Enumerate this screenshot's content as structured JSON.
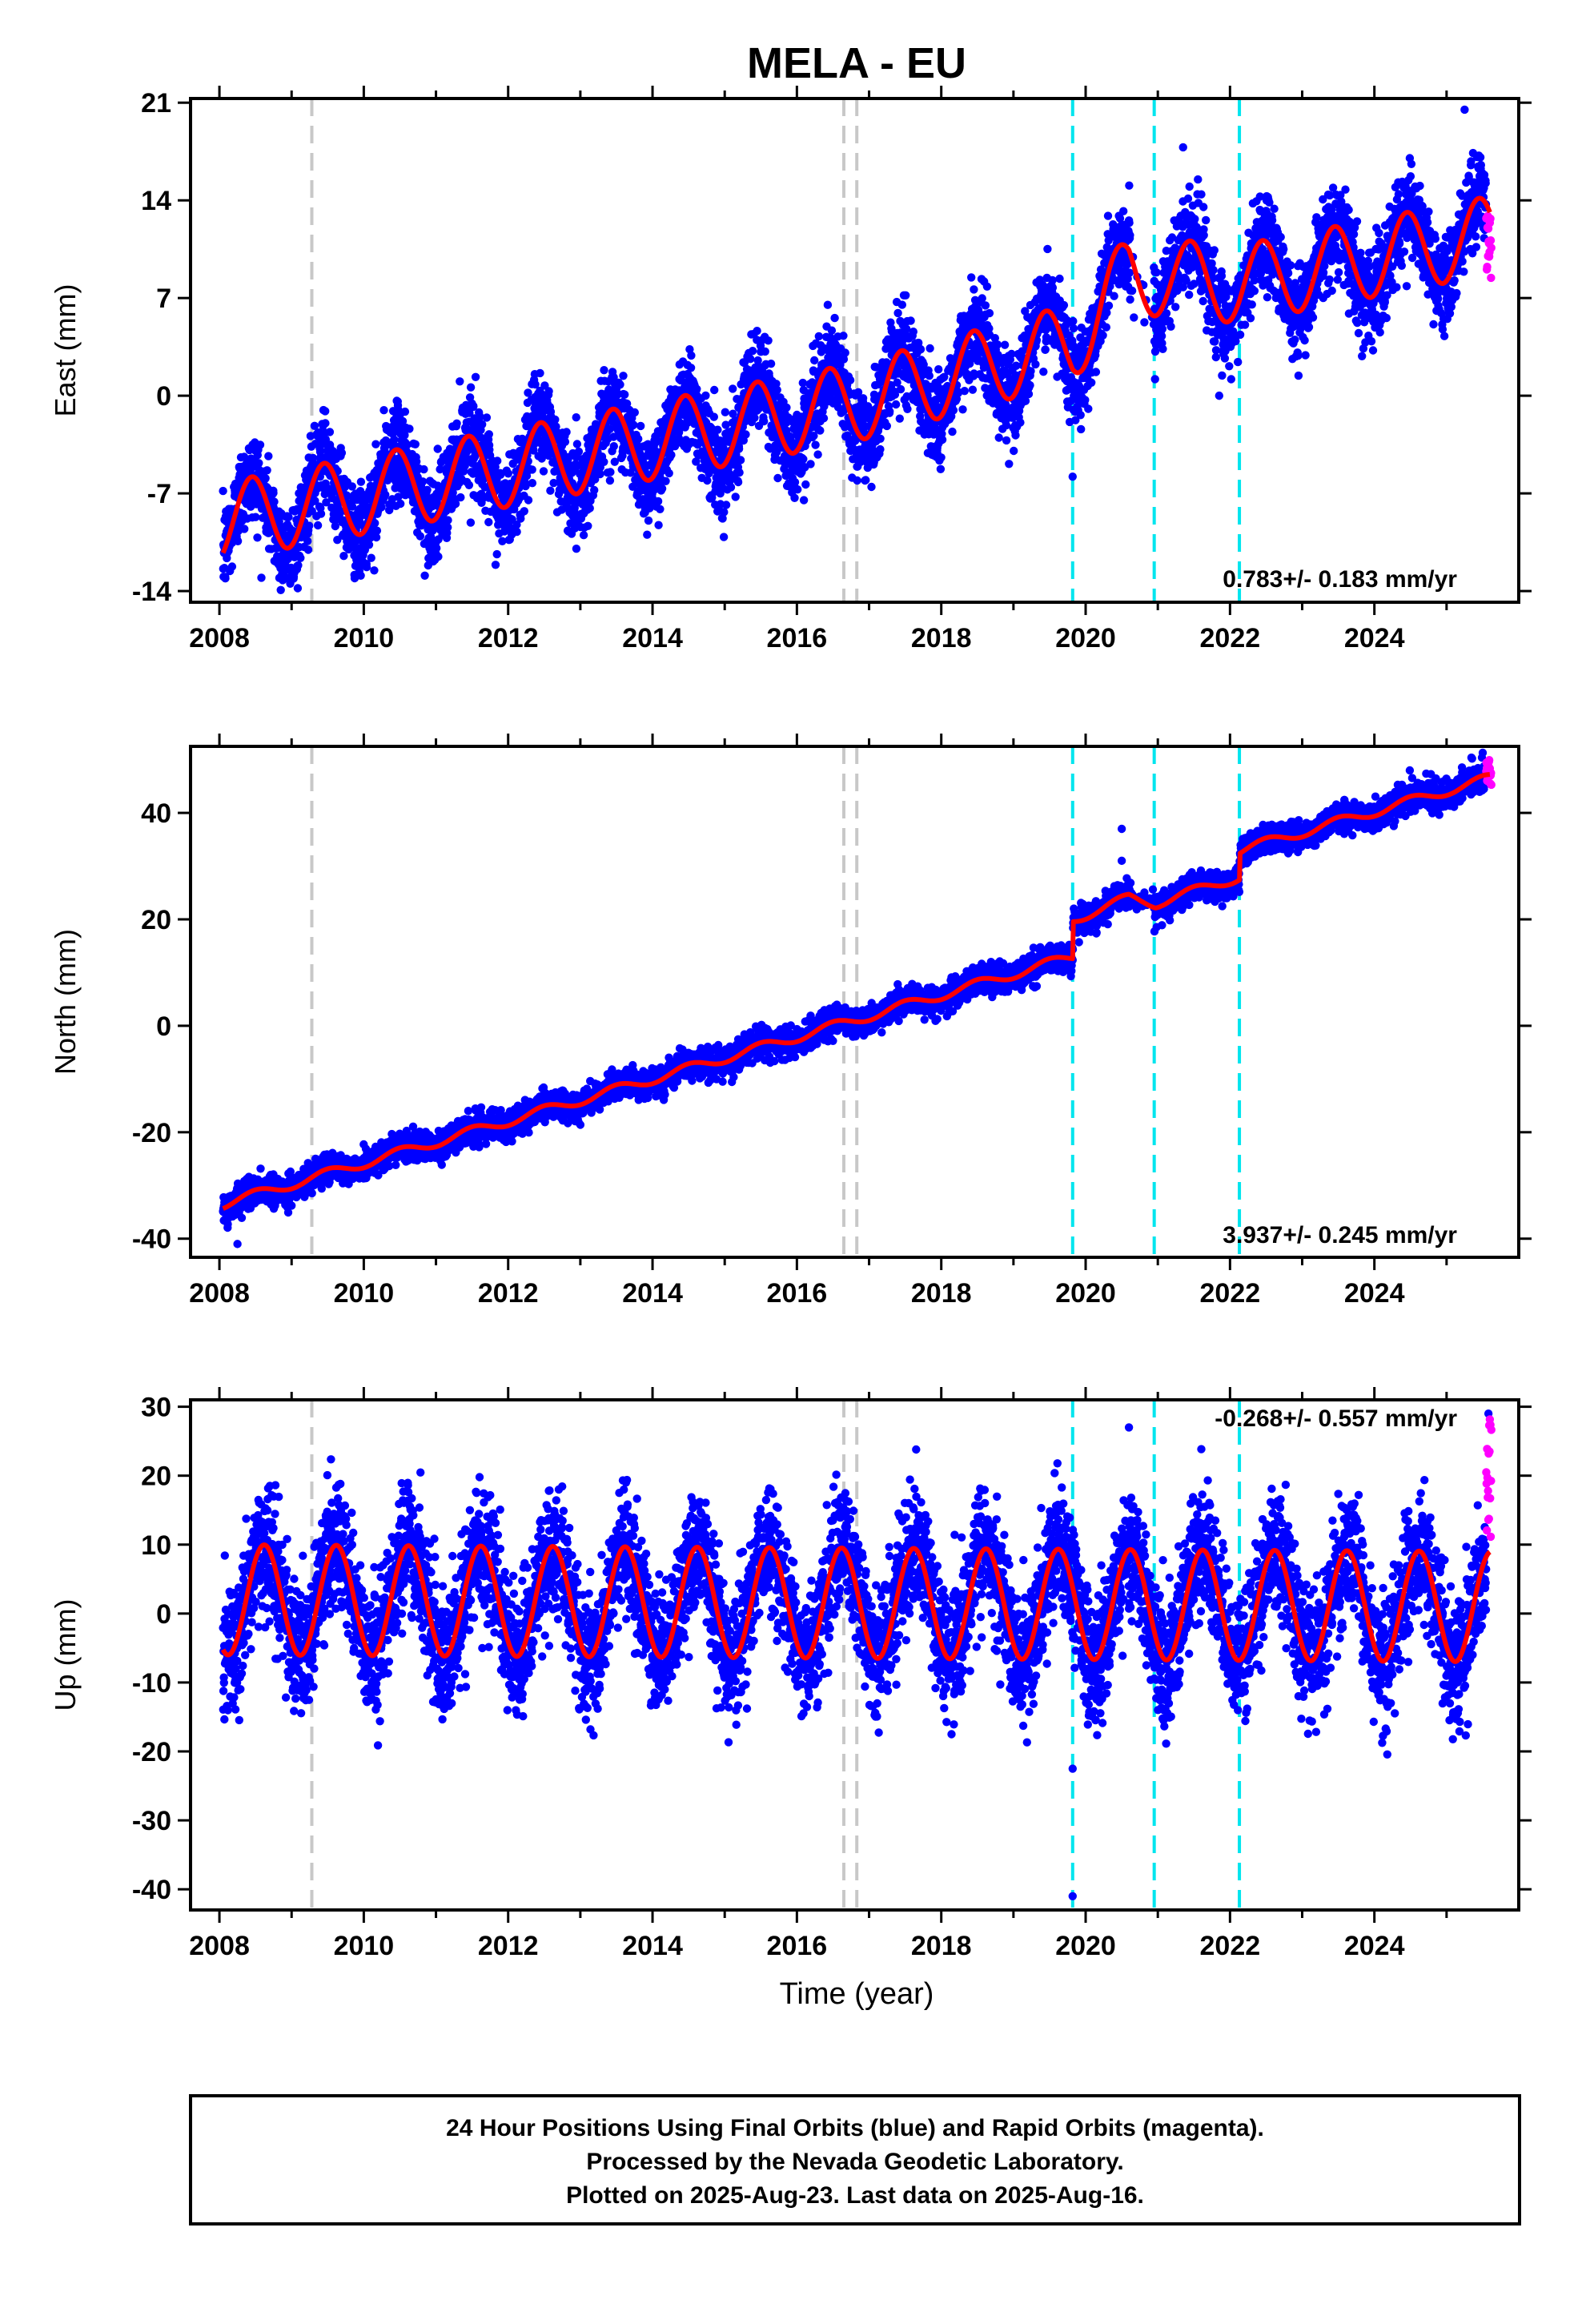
{
  "title": "MELA - EU",
  "xlabel": "Time (year)",
  "colors": {
    "final": "#0000ff",
    "rapid": "#ff00ff",
    "model": "#ff0000",
    "equipment_change": "#c8c8c8",
    "earthquake": "#00e5ee"
  },
  "caption": {
    "line1": "24 Hour Positions Using Final Orbits (blue) and Rapid Orbits (magenta).",
    "line2": "Processed by the Nevada Geodetic Laboratory.",
    "line3": "Plotted on 2025-Aug-23. Last data on 2025-Aug-16."
  },
  "chart_data": [
    {
      "type": "scatter",
      "component": "east",
      "ylabel": "East (mm)",
      "rate_label": "0.783+/- 0.183 mm/yr",
      "xlim": [
        2007.6,
        2026.0
      ],
      "ylim": [
        -14.8,
        21.3
      ],
      "yticks": [
        21,
        14,
        7,
        0,
        -7,
        -14
      ],
      "xticks": [
        2008,
        2010,
        2012,
        2014,
        2016,
        2018,
        2020,
        2022,
        2024
      ],
      "grid": false,
      "trend": {
        "x": [
          2008.05,
          2016.8,
          2019.82,
          2020.6,
          2020.97,
          2022.13,
          2025.6
        ],
        "y": [
          -9.0,
          -0.5,
          3.8,
          8.8,
          8.5,
          8.0,
          11.5
        ]
      },
      "seasonal": {
        "amplitude": 2.8,
        "peak_phase": 0.45
      },
      "scatter_sd": 1.6,
      "rapid_points": {
        "x_start": 2025.55,
        "x_end": 2025.62,
        "y_min": 8.0,
        "y_max": 13.0
      },
      "outliers": [
        {
          "x": 2025.25,
          "y": 20.5
        },
        {
          "x": 2021.35,
          "y": 17.8
        },
        {
          "x": 2019.82,
          "y": -5.8
        },
        {
          "x": 2021.85,
          "y": 0.0
        }
      ]
    },
    {
      "type": "scatter",
      "component": "north",
      "ylabel": "North (mm)",
      "rate_label": "3.937+/- 0.245 mm/yr",
      "xlim": [
        2007.6,
        2026.0
      ],
      "ylim": [
        -43.5,
        52.5
      ],
      "yticks": [
        40,
        20,
        0,
        -20,
        -40
      ],
      "xticks": [
        2008,
        2010,
        2012,
        2014,
        2016,
        2018,
        2020,
        2022,
        2024
      ],
      "grid": false,
      "trend": {
        "x": [
          2008.05,
          2019.82,
          2019.83,
          2020.6,
          2020.97,
          2022.13,
          2022.14,
          2025.6
        ],
        "y": [
          -33.5,
          13.0,
          20.0,
          24.0,
          23.0,
          28.0,
          33.0,
          46.5
        ]
      },
      "seasonal": {
        "amplitude": 0.9,
        "peak_phase": 0.5
      },
      "scatter_sd": 1.3,
      "rapid_points": {
        "x_start": 2025.55,
        "x_end": 2025.62,
        "y_min": 45.0,
        "y_max": 50.5
      },
      "outliers": [
        {
          "x": 2020.5,
          "y": 37.0
        },
        {
          "x": 2020.5,
          "y": 31.0
        },
        {
          "x": 2008.25,
          "y": -41.0
        }
      ]
    },
    {
      "type": "scatter",
      "component": "up",
      "ylabel": "Up (mm)",
      "rate_label": "-0.268+/- 0.557 mm/yr",
      "xlim": [
        2007.6,
        2026.0
      ],
      "ylim": [
        -43.0,
        31.0
      ],
      "yticks": [
        30,
        20,
        10,
        0,
        -10,
        -20,
        -30,
        -40
      ],
      "xticks": [
        2008,
        2010,
        2012,
        2014,
        2016,
        2018,
        2020,
        2022,
        2024
      ],
      "grid": false,
      "trend": {
        "x": [
          2008.05,
          2025.6
        ],
        "y": [
          2.0,
          1.0
        ]
      },
      "seasonal": {
        "amplitude": 8.0,
        "peak_phase": 0.62
      },
      "scatter_sd": 4.5,
      "rapid_points": {
        "x_start": 2025.55,
        "x_end": 2025.62,
        "y_min": 4.0,
        "y_max": 29.0
      },
      "outliers": [
        {
          "x": 2019.82,
          "y": -41.0
        },
        {
          "x": 2019.82,
          "y": -22.5
        },
        {
          "x": 2025.58,
          "y": 29.0
        },
        {
          "x": 2020.6,
          "y": 27.0
        }
      ]
    }
  ],
  "event_lines": {
    "equipment_change": [
      2009.28,
      2016.65,
      2016.83
    ],
    "earthquake": [
      2019.82,
      2020.95,
      2022.13
    ]
  }
}
